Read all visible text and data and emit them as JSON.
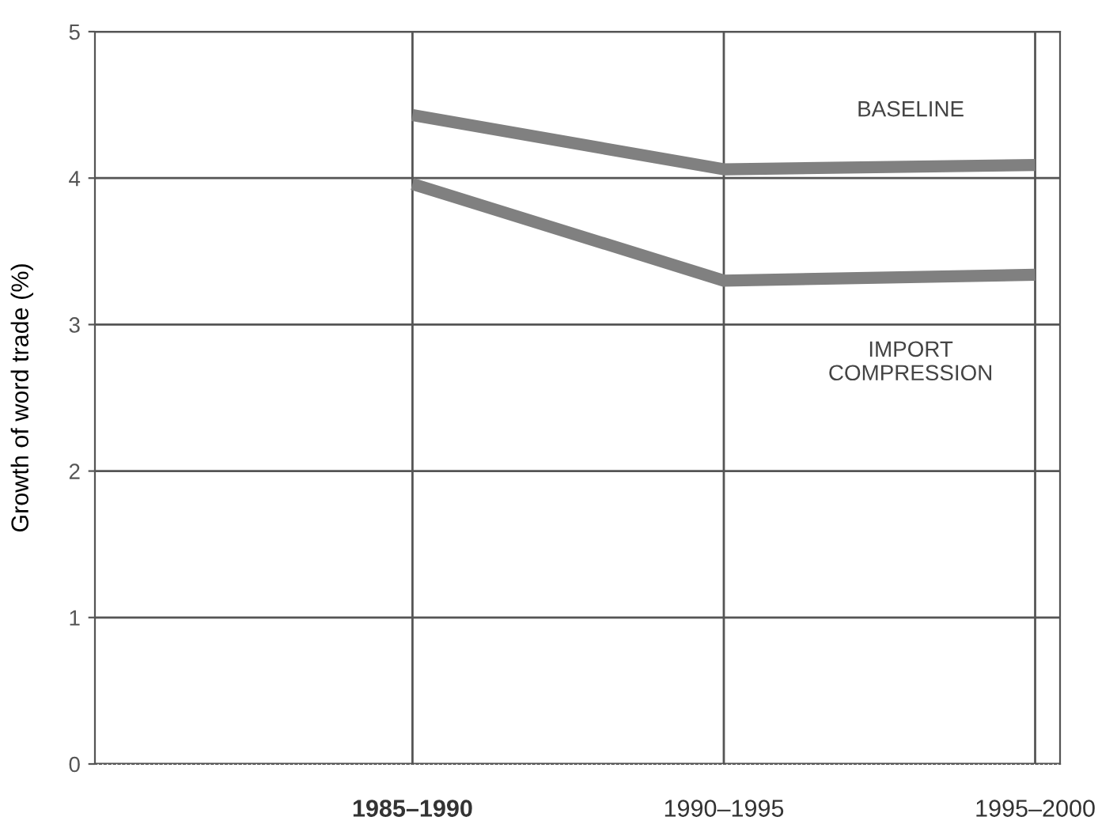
{
  "chart_data": {
    "type": "line",
    "ylabel": "Growth of word trade (%)",
    "categories": [
      "1985–1990",
      "1990–1995",
      "1995–2000"
    ],
    "series": [
      {
        "name": "BASELINE",
        "color": "#808080",
        "values": [
          4.43,
          4.06,
          4.09
        ]
      },
      {
        "name": "IMPORT\nCOMPRESSION",
        "color": "#808080",
        "values": [
          3.96,
          3.3,
          3.34
        ]
      }
    ],
    "ylim": [
      0,
      5
    ],
    "yticks": [
      0,
      1,
      2,
      3,
      4,
      5
    ],
    "grid": true,
    "legend": false,
    "marker": "none",
    "line_style": "solid"
  }
}
